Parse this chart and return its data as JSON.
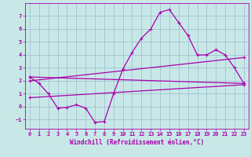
{
  "xlabel": "Windchill (Refroidissement éolien,°C)",
  "bg_color": "#c8e8e8",
  "line_color": "#aa00aa",
  "grid_color": "#99bbcc",
  "xlim": [
    -0.5,
    23.5
  ],
  "ylim": [
    -1.7,
    8.0
  ],
  "xticks": [
    0,
    1,
    2,
    3,
    4,
    5,
    6,
    7,
    8,
    9,
    10,
    11,
    12,
    13,
    14,
    15,
    16,
    17,
    18,
    19,
    20,
    21,
    22,
    23
  ],
  "yticks": [
    -1,
    0,
    1,
    2,
    3,
    4,
    5,
    6,
    7
  ],
  "line1_x": [
    0,
    1,
    2,
    3,
    4,
    5,
    6,
    7,
    8,
    9,
    10,
    11,
    12,
    13,
    14,
    15,
    16,
    17,
    18,
    19,
    20,
    21,
    22,
    23
  ],
  "line1_y": [
    2.3,
    1.8,
    1.0,
    -0.1,
    -0.05,
    0.15,
    -0.1,
    -1.2,
    -1.15,
    1.0,
    2.9,
    4.2,
    5.3,
    6.0,
    7.3,
    7.5,
    6.5,
    5.5,
    4.0,
    4.0,
    4.4,
    4.0,
    3.0,
    1.8
  ],
  "line2_x": [
    0,
    23
  ],
  "line2_y": [
    2.3,
    1.8
  ],
  "line3_x": [
    0,
    23
  ],
  "line3_y": [
    2.0,
    3.8
  ],
  "line4_x": [
    0,
    23
  ],
  "line4_y": [
    0.7,
    1.7
  ],
  "marker": "+",
  "markersize": 3,
  "linewidth": 0.9
}
